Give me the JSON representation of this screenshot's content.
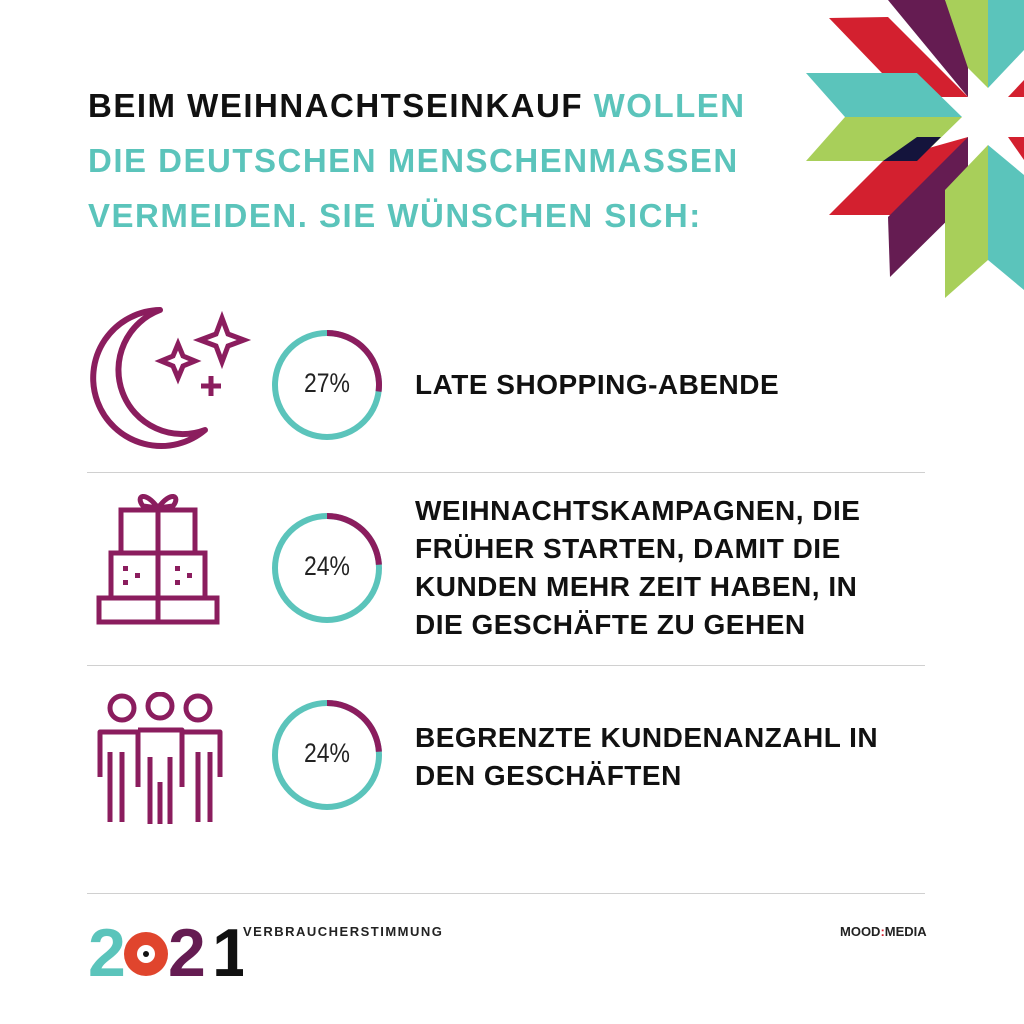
{
  "title": {
    "part1": "BEIM WEIHNACHTSEINKAUF ",
    "part2": "WOLLEN",
    "line2": "DIE DEUTSCHEN MENSCHENMASSEN",
    "line3": "VERMEIDEN. SIE WÜNSCHEN SICH:"
  },
  "colors": {
    "teal": "#5bc4bb",
    "purple": "#8b1d5e",
    "red": "#d3202f",
    "lime": "#a8cf5a",
    "navy": "#14143c",
    "plum": "#651c52"
  },
  "chart_data": {
    "type": "pie",
    "subtype": "donut",
    "items": [
      {
        "label_lines": [
          "LATE SHOPPING-ABENDE"
        ],
        "value": 27,
        "display": "27%",
        "icon": "moon-stars-icon"
      },
      {
        "label_lines": [
          "WEIHNACHTSKAMPAGNEN, DIE",
          "FRÜHER STARTEN, DAMIT DIE",
          "KUNDEN MEHR ZEIT HABEN, IN",
          "DIE GESCHÄFTE ZU GEHEN"
        ],
        "value": 24,
        "display": "24%",
        "icon": "gifts-icon"
      },
      {
        "label_lines": [
          "BEGRENZTE KUNDENANZAHL IN",
          "DEN GESCHÄFTEN"
        ],
        "value": 24,
        "display": "24%",
        "icon": "people-icon"
      }
    ]
  },
  "footer": {
    "year_logo": "2021",
    "label": "VERBRAUCHERSTIMMUNG",
    "brand_left": "MOOD",
    "brand_colon": ":",
    "brand_right": "MEDIA"
  }
}
